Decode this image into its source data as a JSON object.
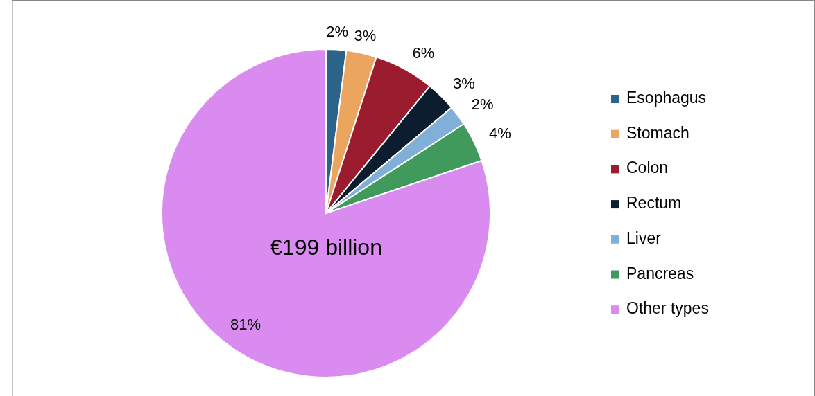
{
  "chart_data": {
    "type": "pie",
    "categories": [
      "Esophagus",
      "Stomach",
      "Colon",
      "Rectum",
      "Liver",
      "Pancreas",
      "Other types"
    ],
    "values": [
      2,
      3,
      6,
      3,
      2,
      4,
      81
    ],
    "colors": [
      "#2b6488",
      "#eba55e",
      "#9c1c2f",
      "#0b1d2f",
      "#80b0d8",
      "#3f9a5b",
      "#da8bef"
    ],
    "value_labels": [
      "2%",
      "3%",
      "6%",
      "3%",
      "2%",
      "4%",
      "81%"
    ],
    "legend": "right",
    "annotations": [
      "€199 billion"
    ]
  }
}
